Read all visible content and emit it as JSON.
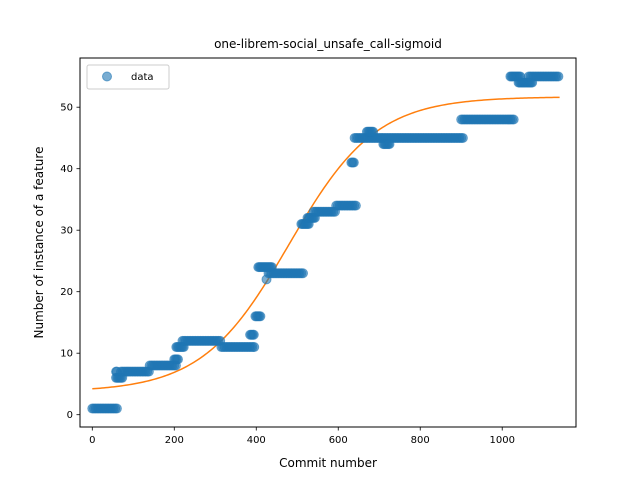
{
  "chart_data": {
    "type": "scatter",
    "title": "one-librem-social_unsafe_call-sigmoid",
    "xlabel": "Commit number",
    "ylabel": "Number of instance of a feature",
    "xlim": [
      -30,
      1180
    ],
    "ylim": [
      -2,
      58
    ],
    "x_ticks": [
      0,
      200,
      400,
      600,
      800,
      1000
    ],
    "y_ticks": [
      0,
      10,
      20,
      30,
      40,
      50
    ],
    "grid": false,
    "legend": {
      "entries": [
        "data"
      ],
      "placement": "upper-left"
    },
    "colors": {
      "data": "#1f77b4",
      "fit": "#ff7f0e"
    },
    "series": [
      {
        "name": "data",
        "kind": "scatter",
        "segments": [
          {
            "x_start": 0,
            "x_end": 60,
            "y": 1,
            "step": 4
          },
          {
            "x_start": 58,
            "x_end": 60,
            "y": 7,
            "step": 2
          },
          {
            "x_start": 58,
            "x_end": 75,
            "y": 6,
            "step": 3
          },
          {
            "x_start": 70,
            "x_end": 140,
            "y": 7,
            "step": 4
          },
          {
            "x_start": 140,
            "x_end": 205,
            "y": 8,
            "step": 4
          },
          {
            "x_start": 200,
            "x_end": 210,
            "y": 9,
            "step": 3
          },
          {
            "x_start": 205,
            "x_end": 225,
            "y": 11,
            "step": 3
          },
          {
            "x_start": 220,
            "x_end": 315,
            "y": 12,
            "step": 4
          },
          {
            "x_start": 315,
            "x_end": 395,
            "y": 11,
            "step": 4
          },
          {
            "x_start": 385,
            "x_end": 395,
            "y": 13,
            "step": 3
          },
          {
            "x_start": 398,
            "x_end": 412,
            "y": 16,
            "step": 3
          },
          {
            "x_start": 405,
            "x_end": 440,
            "y": 24,
            "step": 3
          },
          {
            "x_start": 425,
            "x_end": 425,
            "y": 22,
            "step": 1
          },
          {
            "x_start": 430,
            "x_end": 515,
            "y": 23,
            "step": 4
          },
          {
            "x_start": 510,
            "x_end": 530,
            "y": 31,
            "step": 3
          },
          {
            "x_start": 525,
            "x_end": 545,
            "y": 32,
            "step": 3
          },
          {
            "x_start": 540,
            "x_end": 595,
            "y": 33,
            "step": 4
          },
          {
            "x_start": 595,
            "x_end": 645,
            "y": 34,
            "step": 4
          },
          {
            "x_start": 632,
            "x_end": 640,
            "y": 41,
            "step": 3
          },
          {
            "x_start": 640,
            "x_end": 905,
            "y": 45,
            "step": 4
          },
          {
            "x_start": 670,
            "x_end": 685,
            "y": 46,
            "step": 3
          },
          {
            "x_start": 710,
            "x_end": 725,
            "y": 44,
            "step": 3
          },
          {
            "x_start": 900,
            "x_end": 1030,
            "y": 48,
            "step": 4
          },
          {
            "x_start": 1020,
            "x_end": 1045,
            "y": 55,
            "step": 3
          },
          {
            "x_start": 1040,
            "x_end": 1075,
            "y": 54,
            "step": 3
          },
          {
            "x_start": 1065,
            "x_end": 1140,
            "y": 55,
            "step": 4
          }
        ]
      },
      {
        "name": "fit",
        "kind": "line",
        "function": "sigmoid",
        "params": {
          "L": 48,
          "x0": 480,
          "k": 0.00944,
          "b": 3.7
        },
        "x_start": 0,
        "x_end": 1140,
        "samples": 240
      }
    ]
  }
}
